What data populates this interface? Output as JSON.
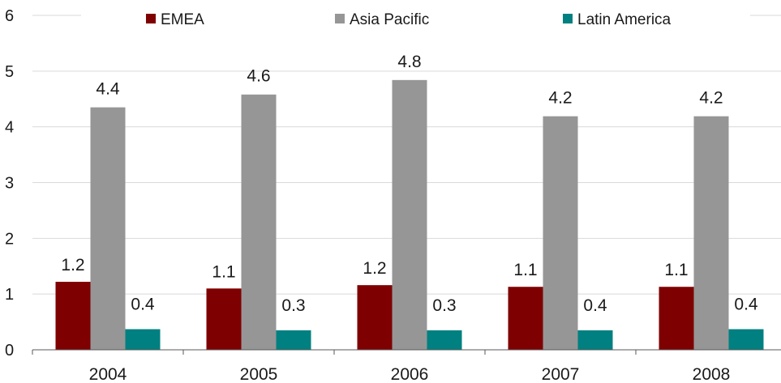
{
  "chart_data": {
    "type": "bar",
    "categories": [
      "2004",
      "2005",
      "2006",
      "2007",
      "2008"
    ],
    "series": [
      {
        "name": "EMEA",
        "color": "#7f0000",
        "values": [
          1.22,
          1.1,
          1.16,
          1.13,
          1.13
        ],
        "labels": [
          "1.2",
          "1.1",
          "1.2",
          "1.1",
          "1.1"
        ]
      },
      {
        "name": "Asia Pacific",
        "color": "#969696",
        "values": [
          4.35,
          4.58,
          4.84,
          4.19,
          4.19
        ],
        "labels": [
          "4.4",
          "4.6",
          "4.8",
          "4.2",
          "4.2"
        ]
      },
      {
        "name": "Latin America",
        "color": "#008080",
        "values": [
          0.37,
          0.35,
          0.35,
          0.35,
          0.37
        ],
        "labels": [
          "0.4",
          "0.3",
          "0.3",
          "0.4",
          "0.4"
        ]
      }
    ],
    "yticks": [
      "0",
      "1",
      "2",
      "3",
      "4",
      "5",
      "6"
    ],
    "ylim": [
      0,
      6
    ],
    "grid": true,
    "legend_position": "top"
  }
}
